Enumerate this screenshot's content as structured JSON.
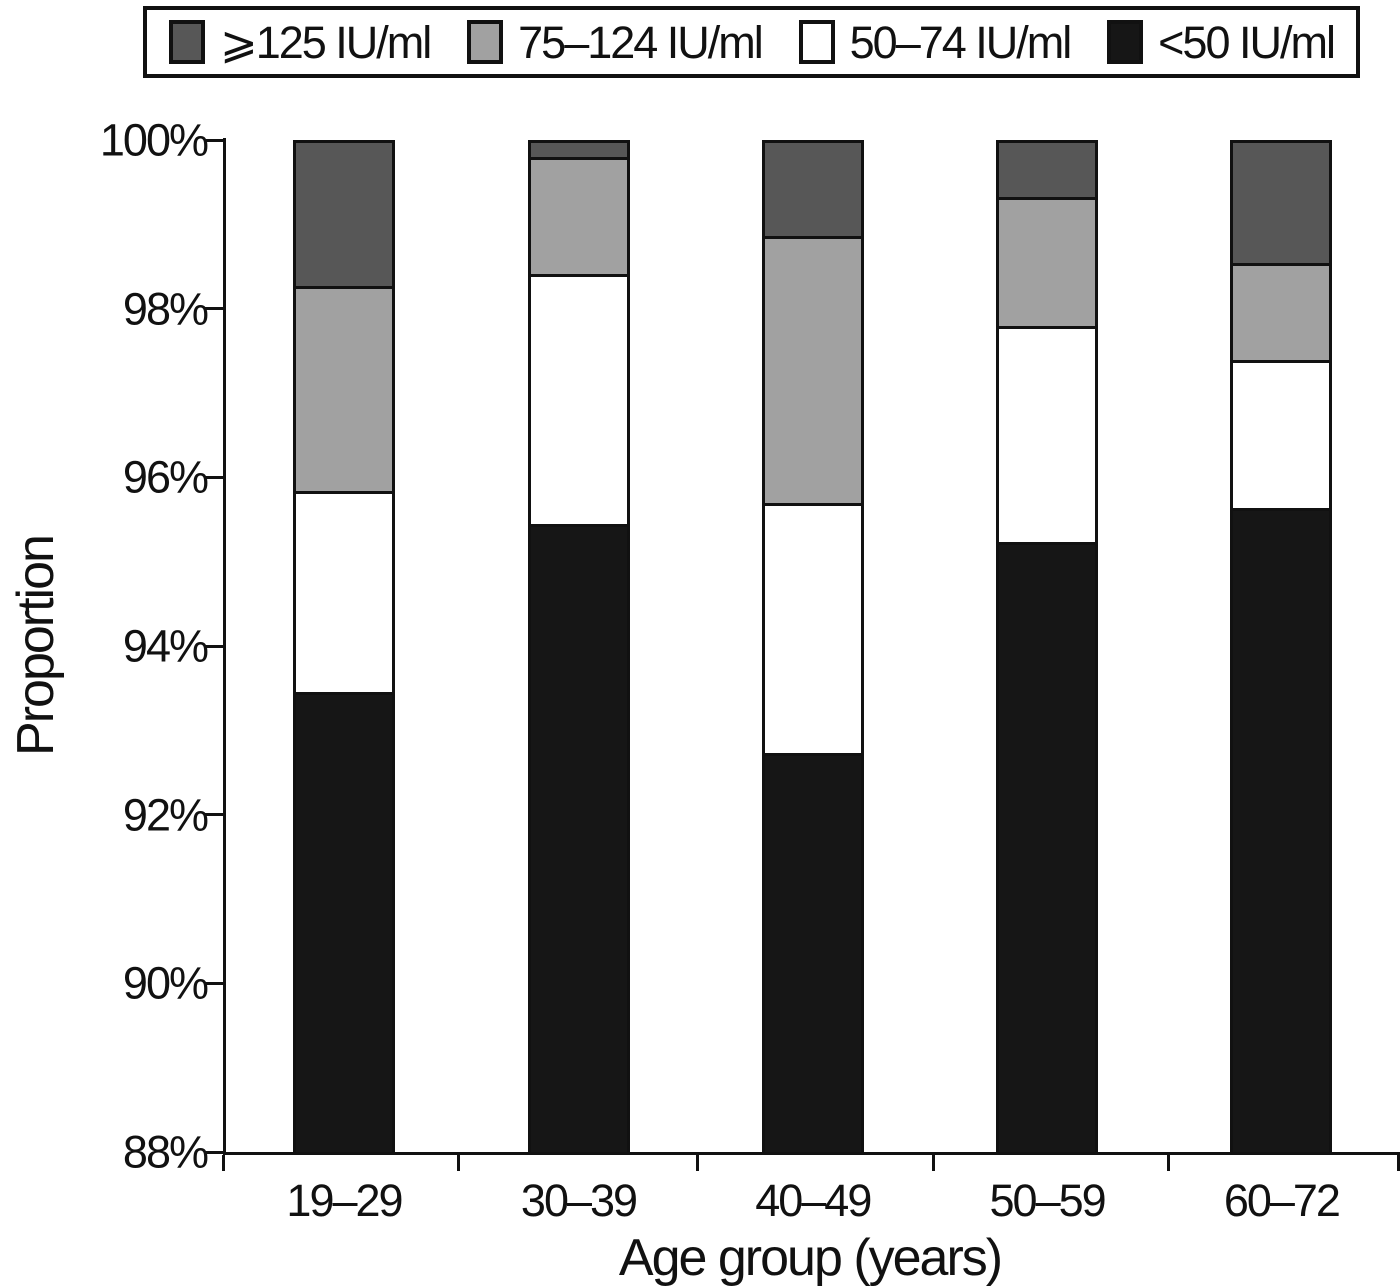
{
  "figure": {
    "background": "#ffffff",
    "axis_color": "#111111"
  },
  "chart_data": {
    "type": "bar",
    "subtype": "stacked-percent-bar",
    "title": "",
    "xlabel": "Age group (years)",
    "ylabel": "Proportion",
    "ylim": [
      88,
      100
    ],
    "yticks": [
      88,
      90,
      92,
      94,
      96,
      98,
      100
    ],
    "ytick_suffix": "%",
    "grid": false,
    "legend_position": "top",
    "categories": [
      "19–29",
      "30–39",
      "40–49",
      "50–59",
      "60–72"
    ],
    "series": [
      {
        "name": "<50 IU/ml",
        "color": "#161616",
        "values": [
          93.45,
          95.45,
          92.73,
          95.24,
          95.64
        ]
      },
      {
        "name": "50–74 IU/ml",
        "color": "#ffffff",
        "values": [
          2.39,
          2.98,
          2.97,
          2.56,
          1.76
        ]
      },
      {
        "name": "75–124 IU/ml",
        "color": "#a1a1a1",
        "values": [
          2.44,
          1.39,
          3.18,
          1.54,
          1.15
        ]
      },
      {
        "name": "⩾125 IU/ml",
        "color": "#575757",
        "values": [
          1.72,
          0.18,
          1.12,
          0.66,
          1.45
        ]
      }
    ],
    "legend_items": [
      {
        "label": "⩾125 IU/ml",
        "color": "#575757"
      },
      {
        "label": "75–124 IU/ml",
        "color": "#a1a1a1"
      },
      {
        "label": "50–74 IU/ml",
        "color": "#ffffff"
      },
      {
        "label": "<50 IU/ml",
        "color": "#161616"
      }
    ]
  }
}
